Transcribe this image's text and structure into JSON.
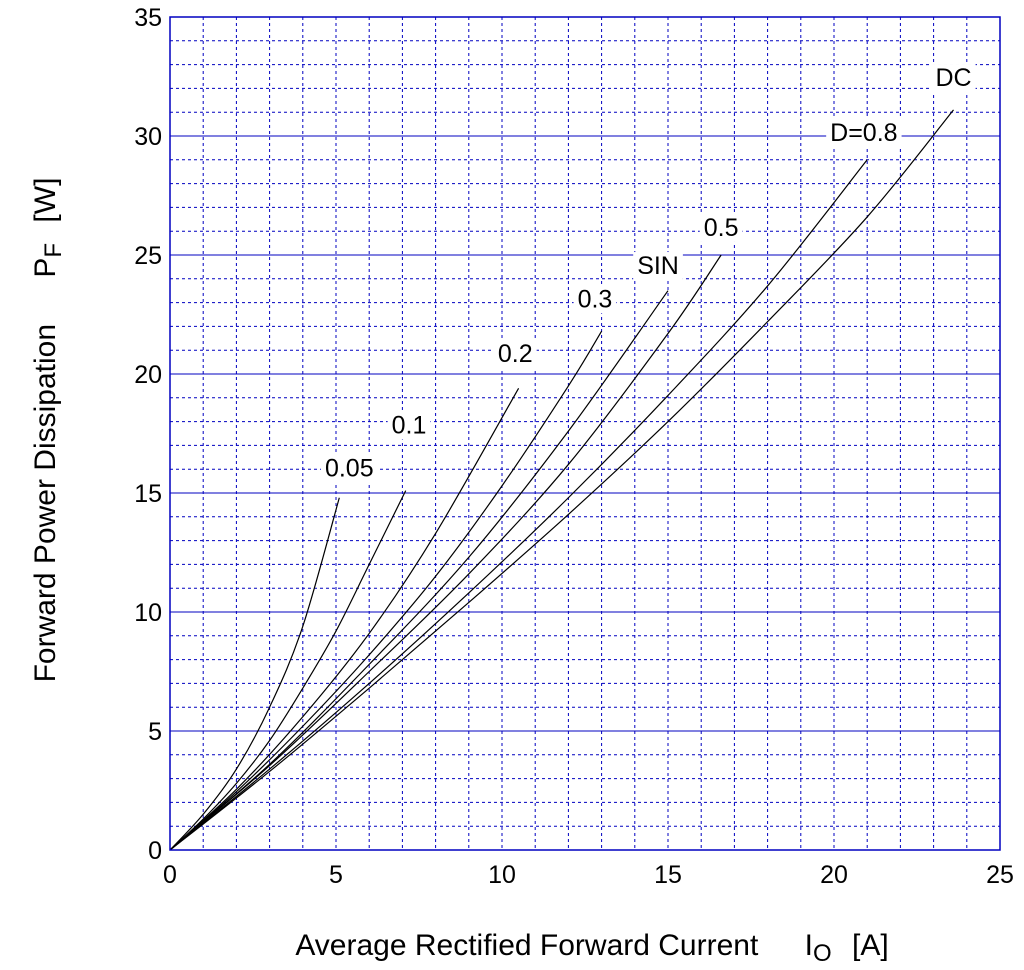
{
  "chart_data": {
    "type": "line",
    "x_axis": {
      "label_text": "Average Rectified Forward Current",
      "label_symbol": "I",
      "label_subscript": "O",
      "label_unit": "[A]",
      "range": [
        0,
        25
      ],
      "ticks": [
        "0",
        "5",
        "10",
        "15",
        "20",
        "25"
      ],
      "minor_step": 1
    },
    "y_axis": {
      "label_text": "Forward Power Dissipation",
      "label_symbol": "P",
      "label_subscript": "F",
      "label_unit": "[W]",
      "range": [
        0,
        35
      ],
      "ticks": [
        "0",
        "5",
        "10",
        "15",
        "20",
        "25",
        "30",
        "35"
      ],
      "minor_step": 1
    },
    "grid": true,
    "series": [
      {
        "name": "0.05",
        "points": [
          [
            0,
            0
          ],
          [
            1,
            1.5
          ],
          [
            2,
            3.4
          ],
          [
            3,
            6.0
          ],
          [
            4,
            9.4
          ],
          [
            5.1,
            14.8
          ]
        ]
      },
      {
        "name": "0.1",
        "points": [
          [
            0,
            0
          ],
          [
            1,
            1.3
          ],
          [
            2,
            2.8
          ],
          [
            3,
            4.6
          ],
          [
            4,
            6.8
          ],
          [
            5,
            9.2
          ],
          [
            6,
            12.0
          ],
          [
            7.1,
            15.1
          ]
        ]
      },
      {
        "name": "0.2",
        "points": [
          [
            0,
            0
          ],
          [
            2,
            2.55
          ],
          [
            4,
            5.6
          ],
          [
            6,
            9.1
          ],
          [
            8,
            13.3
          ],
          [
            10.5,
            19.4
          ]
        ]
      },
      {
        "name": "0.3",
        "points": [
          [
            0,
            0
          ],
          [
            2,
            2.45
          ],
          [
            4,
            5.2
          ],
          [
            6,
            8.2
          ],
          [
            8,
            11.5
          ],
          [
            10,
            15.3
          ],
          [
            12,
            19.5
          ],
          [
            13,
            21.8
          ]
        ]
      },
      {
        "name": "SIN",
        "points": [
          [
            0,
            0
          ],
          [
            3,
            3.6
          ],
          [
            6,
            7.8
          ],
          [
            9,
            12.3
          ],
          [
            12,
            17.6
          ],
          [
            15,
            23.5
          ]
        ]
      },
      {
        "name": "0.5",
        "points": [
          [
            0,
            0
          ],
          [
            3,
            3.55
          ],
          [
            6,
            7.5
          ],
          [
            9,
            11.6
          ],
          [
            12,
            16.2
          ],
          [
            15,
            21.7
          ],
          [
            16.6,
            25.0
          ]
        ]
      },
      {
        "name": "D=0.8",
        "points": [
          [
            0,
            0
          ],
          [
            3,
            3.4
          ],
          [
            6,
            7.0
          ],
          [
            9,
            10.8
          ],
          [
            12,
            14.8
          ],
          [
            15,
            19.1
          ],
          [
            18,
            23.7
          ],
          [
            21,
            29.0
          ]
        ]
      },
      {
        "name": "DC",
        "points": [
          [
            0,
            0
          ],
          [
            3,
            3.3
          ],
          [
            6,
            6.8
          ],
          [
            9,
            10.4
          ],
          [
            12,
            14.1
          ],
          [
            15,
            18.0
          ],
          [
            18,
            22.2
          ],
          [
            21,
            26.6
          ],
          [
            23.6,
            31.1
          ]
        ]
      }
    ],
    "labels": [
      {
        "text": "0.05",
        "x": 5.4,
        "y": 15.7
      },
      {
        "text": "0.1",
        "x": 7.2,
        "y": 17.5
      },
      {
        "text": "0.2",
        "x": 10.4,
        "y": 20.5
      },
      {
        "text": "0.3",
        "x": 12.8,
        "y": 22.8
      },
      {
        "text": "SIN",
        "x": 14.7,
        "y": 24.2
      },
      {
        "text": "0.5",
        "x": 16.6,
        "y": 25.8
      },
      {
        "text": "D=0.8",
        "x": 20.9,
        "y": 29.8
      },
      {
        "text": "DC",
        "x": 23.6,
        "y": 32.1
      }
    ]
  }
}
